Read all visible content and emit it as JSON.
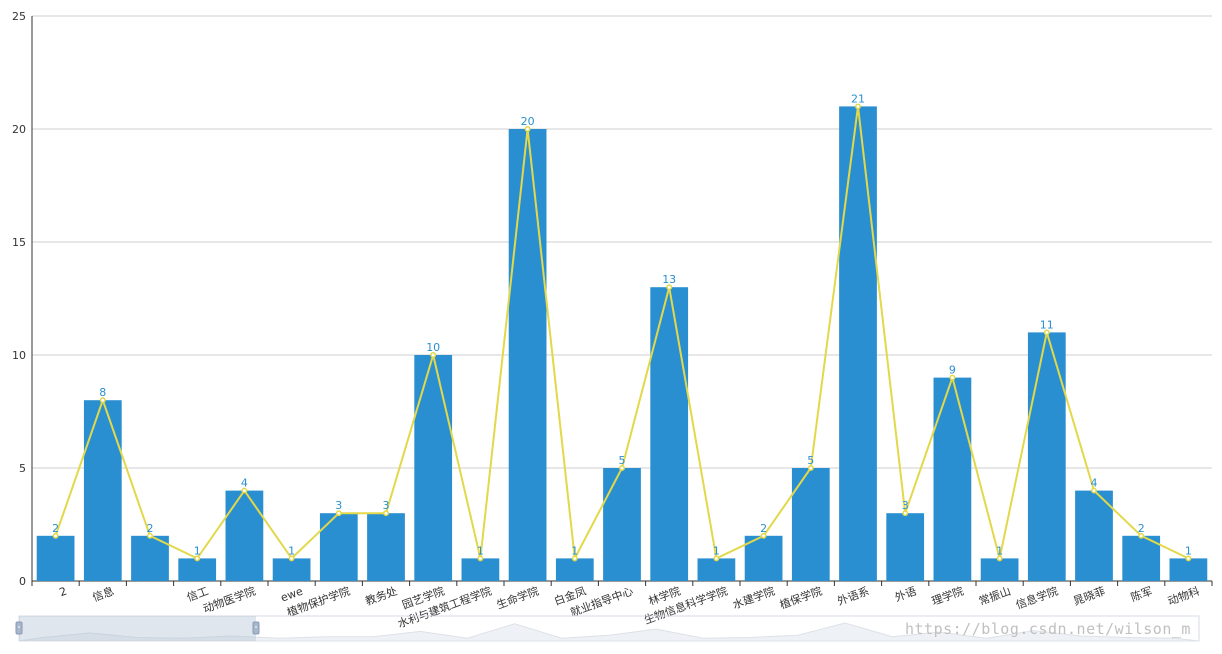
{
  "chart_data": {
    "type": "bar",
    "categories": [
      "2",
      "信息",
      "",
      "信工",
      "动物医学院",
      "ewe",
      "植物保护学院",
      "教务处",
      "园艺学院",
      "水利与建筑工程学院",
      "生命学院",
      "白金凤",
      "就业指导中心",
      "林学院",
      "生物信息科学学院",
      "水建学院",
      "植保学院",
      "外语系",
      "外语",
      "理学院",
      "常振山",
      "信息学院",
      "晁晓菲",
      "陈军",
      "动物科"
    ],
    "series": [
      {
        "type": "bar",
        "values": [
          2,
          8,
          2,
          1,
          4,
          1,
          3,
          3,
          10,
          1,
          20,
          1,
          5,
          13,
          1,
          2,
          5,
          21,
          3,
          9,
          1,
          11,
          4,
          2,
          1
        ]
      },
      {
        "type": "line",
        "values": [
          2,
          8,
          2,
          1,
          4,
          1,
          3,
          3,
          10,
          1,
          20,
          1,
          5,
          13,
          1,
          2,
          5,
          21,
          3,
          9,
          1,
          11,
          4,
          2,
          1
        ]
      }
    ],
    "ylim": [
      0,
      25
    ],
    "yticks": [
      0,
      5,
      10,
      15,
      20,
      25
    ],
    "grid": true,
    "colors": {
      "bar": "#2a8fd0",
      "line": "#e2d84a",
      "label": "#2a8fd0"
    },
    "datazoom_visible": true
  },
  "watermark": "https://blog.csdn.net/wilson_m"
}
